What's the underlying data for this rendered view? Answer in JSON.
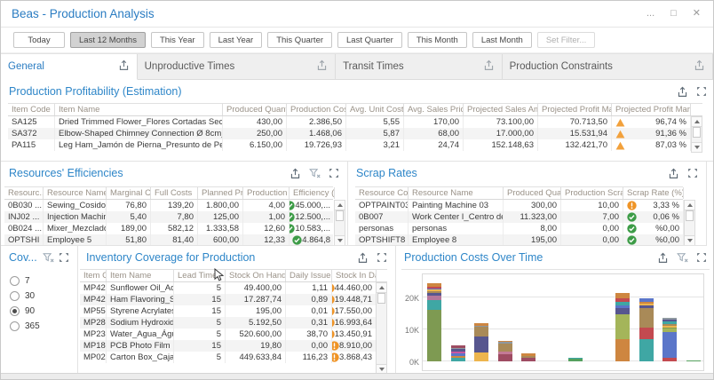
{
  "window": {
    "title": "Beas - Production Analysis",
    "controls": {
      "menu": "...",
      "maximize": "□",
      "close": "✕"
    }
  },
  "filters": {
    "buttons": [
      {
        "label": "Today"
      },
      {
        "label": "Last 12 Months",
        "selected": true
      },
      {
        "label": "This Year"
      },
      {
        "label": "Last Year"
      },
      {
        "label": "This Quarter"
      },
      {
        "label": "Last Quarter"
      },
      {
        "label": "This Month"
      },
      {
        "label": "Last Month"
      },
      {
        "label": "Set Filter...",
        "disabled": true
      }
    ]
  },
  "tabs": [
    {
      "label": "General",
      "active": true
    },
    {
      "label": "Unproductive Times"
    },
    {
      "label": "Transit Times"
    },
    {
      "label": "Production Constraints"
    }
  ],
  "icons": {
    "export-icon": "tray with up arrow",
    "maximize-panel-icon": "four corner arrows",
    "clear-filter-icon": "funnel with x",
    "check-circle-icon": "green circle with white check",
    "warning-circle-icon": "orange circle with white exclamation",
    "triangle-up-icon": "orange warning triangle",
    "scroll-up-icon": "▲",
    "scroll-down-icon": "▼"
  },
  "status_colors": {
    "ok": "#3D9C47",
    "warning": "#EF9426",
    "accent_blue": "#2E86C8"
  },
  "panels": {
    "profitability": {
      "title": "Production Profitability (Estimation)",
      "columns": [
        "Item Code",
        "Item Name",
        "Produced Quantity",
        "Production Costs",
        "Avg. Unit Cost",
        "Avg. Sales Price",
        "Projected Sales Amount",
        "Projected Profit Margin",
        "Projected Profit Margin (%)"
      ],
      "rows": [
        {
          "cells": [
            "SA125",
            "Dried Trimmed Flower_Flores Cortadas Secas",
            "430,00",
            "2.386,50",
            "5,55",
            "170,00",
            "73.100,00",
            "70.713,50",
            "96,74 %"
          ],
          "icon": "triangle-up"
        },
        {
          "cells": [
            "SA372",
            "Elbow-Shaped Chimney Connection Ø 8cm_Conexión ...",
            "250,00",
            "1.468,06",
            "5,87",
            "68,00",
            "17.000,00",
            "15.531,94",
            "91,36 %"
          ],
          "icon": "triangle-up"
        },
        {
          "cells": [
            "PA115",
            "Leg Ham_Jamón de Pierna_Presunto de Perna",
            "6.150,00",
            "19.726,93",
            "3,21",
            "24,74",
            "152.148,63",
            "132.421,70",
            "87,03 %"
          ],
          "icon": "triangle-up"
        }
      ]
    },
    "efficiencies": {
      "title": "Resources' Efficiencies",
      "columns": [
        "Resourc...",
        "Resource Name",
        "Marginal Costs",
        "Full Costs",
        "Planned Pro...",
        "Production Ti...",
        "Efficiency (%)"
      ],
      "rows": [
        {
          "cells": [
            "0B030 ...",
            "Sewing_Cosido_...",
            "76,80",
            "139,20",
            "1.800,00",
            "4,00",
            "45.000,..."
          ],
          "icon": "check-circle"
        },
        {
          "cells": [
            "INJ02 ...",
            "Injection Machine 2",
            "5,40",
            "7,80",
            "125,00",
            "1,00",
            "12.500,..."
          ],
          "icon": "check-circle"
        },
        {
          "cells": [
            "0B024 ...",
            "Mixer_Mezclado_...",
            "189,00",
            "582,12",
            "1.333,58",
            "12,60",
            "10.583,..."
          ],
          "icon": "check-circle"
        },
        {
          "cells": [
            "OPTSHI",
            "Employee 5",
            "51,80",
            "81,40",
            "600,00",
            "12,33",
            "4.864,8"
          ],
          "icon": "check-circle"
        }
      ]
    },
    "scrap": {
      "title": "Scrap Rates",
      "columns": [
        "Resource Code",
        "Resource Name",
        "Produced Quantity",
        "Production Scraps",
        "Scrap Rate (%)"
      ],
      "rows": [
        {
          "cells": [
            "OPTPAINT03 ...",
            "Painting Machine 03",
            "300,00",
            "10,00",
            "3,33 %"
          ],
          "icon": "warning-circle"
        },
        {
          "cells": [
            "0B007",
            "Work Center I_Centro de Trabajo I",
            "11.323,00",
            "7,00",
            "0,06 %"
          ],
          "icon": "check-circle"
        },
        {
          "cells": [
            "personas",
            "personas",
            "8,00",
            "0,00",
            "%0,00"
          ],
          "icon": "check-circle"
        },
        {
          "cells": [
            "OPTSHIFT8",
            "Employee 8",
            "195,00",
            "0,00",
            "%0,00"
          ],
          "icon": "check-circle"
        }
      ]
    },
    "coverage": {
      "title": "Cov...",
      "options": [
        "7",
        "30",
        "90",
        "365"
      ],
      "selected": "90"
    },
    "inventory": {
      "title": "Inventory Coverage for Production",
      "columns": [
        "Item Co...",
        "Item Name",
        "Lead Time",
        "Stock On Hand",
        "Daily Issues",
        "Stock In Days"
      ],
      "rows": [
        {
          "cells": [
            "MP423",
            "Sunflower Oil_Aceite de Gir...",
            "5",
            "49.400,00",
            "1,11",
            "44.460,00"
          ],
          "icon": "warning-circle"
        },
        {
          "cells": [
            "MP426",
            "Ham Flavoring_Saborizante...",
            "15",
            "17.287,74",
            "0,89",
            "19.448,71"
          ],
          "icon": "warning-circle"
        },
        {
          "cells": [
            "MP554",
            "Styrene Acrylates Copolym...",
            "15",
            "195,00",
            "0,01",
            "17.550,00"
          ],
          "icon": "warning-circle"
        },
        {
          "cells": [
            "MP286",
            "Sodium Hydroxide_Hidróxid...",
            "5",
            "5.192,50",
            "0,31",
            "16.993,64"
          ],
          "icon": "warning-circle"
        },
        {
          "cells": [
            "MP231",
            "Water_Agua_Água",
            "5",
            "520.600,00",
            "38,70",
            "13.450,91"
          ],
          "icon": "warning-circle"
        },
        {
          "cells": [
            "MP183",
            "PCB Photo Film",
            "15",
            "19,80",
            "0,00",
            "8.910,00"
          ],
          "icon": "warning-circle"
        },
        {
          "cells": [
            "MP022",
            "Carton Box_Caja de Cartó...",
            "5",
            "449.633,84",
            "116,23",
            "3.868,43"
          ],
          "icon": "warning-circle"
        }
      ]
    }
  },
  "chart_data": {
    "type": "bar",
    "stacked": true,
    "title": "Production Costs Over Time",
    "xlabel": "",
    "ylabel": "",
    "x_slots": 12,
    "x_labels": [],
    "y_ticks": [
      "0K",
      "10K",
      "20K"
    ],
    "y_tick_values": [
      0,
      10000,
      20000
    ],
    "ylim": [
      0,
      25000
    ],
    "grid": true,
    "legend": "none",
    "bars": [
      {
        "slot": 0,
        "total": 24500,
        "segments": [
          [
            "#7E9A52",
            16200
          ],
          [
            "#3FA7A4",
            2900
          ],
          [
            "#B4779B",
            1500
          ],
          [
            "#57568F",
            700
          ],
          [
            "#A98A58",
            600
          ],
          [
            "#EDB54E",
            500
          ],
          [
            "#5B76C9",
            500
          ],
          [
            "#C34A50",
            400
          ],
          [
            "#CE8640",
            1200
          ]
        ]
      },
      {
        "slot": 1,
        "total": 5000,
        "segments": [
          [
            "#3FA7A4",
            1000
          ],
          [
            "#CE8640",
            800
          ],
          [
            "#5B76C9",
            700
          ],
          [
            "#C957A0",
            700
          ],
          [
            "#57568F",
            600
          ],
          [
            "#8E98A0",
            300
          ],
          [
            "#9E4C62",
            900
          ]
        ]
      },
      {
        "slot": 2,
        "total": 12000,
        "segments": [
          [
            "#EDB54E",
            2700
          ],
          [
            "#57568F",
            5100
          ],
          [
            "#A98A58",
            2900
          ],
          [
            "#8E98A0",
            300
          ],
          [
            "#CE8640",
            1000
          ]
        ]
      },
      {
        "slot": 3,
        "total": 6500,
        "segments": [
          [
            "#9E4C62",
            2300
          ],
          [
            "#C47A96",
            900
          ],
          [
            "#A98A58",
            2400
          ],
          [
            "#8E98A0",
            400
          ],
          [
            "#CE8640",
            500
          ]
        ]
      },
      {
        "slot": 4,
        "total": 2400,
        "segments": [
          [
            "#9E4C62",
            1100
          ],
          [
            "#A98A58",
            700
          ],
          [
            "#CE8640",
            600
          ]
        ]
      },
      {
        "slot": 6,
        "total": 1200,
        "segments": [
          [
            "#55A05E",
            700
          ],
          [
            "#3FA7A4",
            500
          ]
        ]
      },
      {
        "slot": 8,
        "total": 21500,
        "segments": [
          [
            "#CE8640",
            7000
          ],
          [
            "#A4B55A",
            7600
          ],
          [
            "#57568F",
            2100
          ],
          [
            "#5B76C9",
            900
          ],
          [
            "#3FA7A4",
            1100
          ],
          [
            "#C34A50",
            1000
          ],
          [
            "#CE8640",
            1800
          ]
        ]
      },
      {
        "slot": 9,
        "total": 19800,
        "segments": [
          [
            "#3FA7A4",
            7000
          ],
          [
            "#C34A50",
            3500
          ],
          [
            "#A98A58",
            6300
          ],
          [
            "#57568F",
            700
          ],
          [
            "#EDB54E",
            600
          ],
          [
            "#CE8640",
            600
          ],
          [
            "#5B76C9",
            1100
          ]
        ]
      },
      {
        "slot": 10,
        "total": 13700,
        "segments": [
          [
            "#C34A50",
            1200
          ],
          [
            "#5B76C9",
            7900
          ],
          [
            "#A4B55A",
            1100
          ],
          [
            "#7E9A52",
            500
          ],
          [
            "#EDB54E",
            500
          ],
          [
            "#A98A58",
            600
          ],
          [
            "#3FA7A4",
            600
          ],
          [
            "#57568F",
            700
          ],
          [
            "#8E98A0",
            600
          ]
        ]
      },
      {
        "slot": 11,
        "total": 300,
        "segments": [
          [
            "#55A05E",
            300
          ]
        ]
      }
    ]
  }
}
